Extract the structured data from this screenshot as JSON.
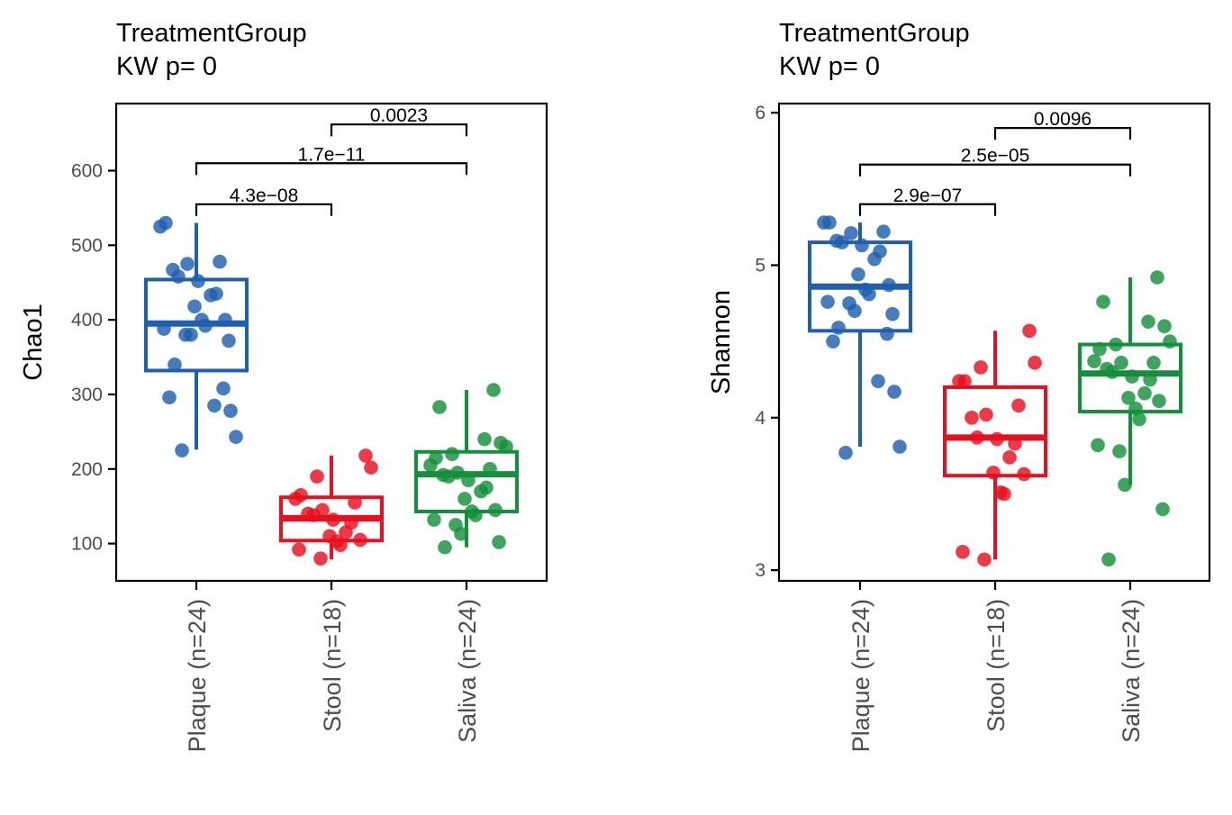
{
  "colors": {
    "Plaque": "#1F5FB0",
    "Stool": "#E8101E",
    "Saliva": "#13903A",
    "axis": "#000000",
    "tick_label": "#4D4D4D"
  },
  "chart_data": [
    {
      "type": "box",
      "title": "TreatmentGroup",
      "subtitle": "KW p= 0",
      "xlabel": "",
      "ylabel": "Chao1",
      "ylim": [
        50,
        690
      ],
      "yticks": [
        100,
        200,
        300,
        400,
        500,
        600
      ],
      "categories": [
        "Plaque (n=24)",
        "Stool (n=18)",
        "Saliva (n=24)"
      ],
      "boxes": [
        {
          "group": "Plaque",
          "q1": 332,
          "median": 395,
          "q3": 454,
          "whisker_low": 226,
          "whisker_high": 530
        },
        {
          "group": "Stool",
          "q1": 104,
          "median": 134,
          "q3": 162,
          "whisker_low": 79,
          "whisker_high": 218
        },
        {
          "group": "Saliva",
          "q1": 143,
          "median": 193,
          "q3": 223,
          "whisker_low": 95,
          "whisker_high": 306
        }
      ],
      "points": [
        {
          "group": "Plaque",
          "values": [
            530,
            525,
            478,
            475,
            467,
            458,
            452,
            435,
            433,
            418,
            400,
            400,
            392,
            388,
            380,
            380,
            372,
            340,
            308,
            296,
            285,
            278,
            243,
            225
          ]
        },
        {
          "group": "Stool",
          "values": [
            218,
            202,
            190,
            165,
            160,
            155,
            145,
            140,
            138,
            132,
            128,
            115,
            110,
            105,
            103,
            98,
            92,
            80
          ]
        },
        {
          "group": "Saliva",
          "values": [
            306,
            283,
            240,
            235,
            230,
            220,
            215,
            205,
            200,
            195,
            192,
            190,
            185,
            175,
            170,
            160,
            145,
            143,
            138,
            132,
            125,
            113,
            102,
            95
          ]
        }
      ],
      "comparisons": [
        {
          "from": "Plaque",
          "to": "Stool",
          "y": 555,
          "label": "4.3e−08"
        },
        {
          "from": "Plaque",
          "to": "Saliva",
          "y": 610,
          "label": "1.7e−11"
        },
        {
          "from": "Stool",
          "to": "Saliva",
          "y": 662,
          "label": "0.0023"
        }
      ]
    },
    {
      "type": "box",
      "title": "TreatmentGroup",
      "subtitle": "KW p= 0",
      "xlabel": "",
      "ylabel": "Shannon",
      "ylim": [
        2.93,
        6.06
      ],
      "yticks": [
        3,
        4,
        5,
        6
      ],
      "categories": [
        "Plaque (n=24)",
        "Stool (n=18)",
        "Saliva (n=24)"
      ],
      "boxes": [
        {
          "group": "Plaque",
          "q1": 4.57,
          "median": 4.86,
          "q3": 5.15,
          "whisker_low": 3.81,
          "whisker_high": 5.28
        },
        {
          "group": "Stool",
          "q1": 3.62,
          "median": 3.87,
          "q3": 4.2,
          "whisker_low": 3.07,
          "whisker_high": 4.57
        },
        {
          "group": "Saliva",
          "q1": 4.04,
          "median": 4.29,
          "q3": 4.48,
          "whisker_low": 3.56,
          "whisker_high": 4.92
        }
      ],
      "points": [
        {
          "group": "Plaque",
          "values": [
            5.28,
            5.28,
            5.22,
            5.21,
            5.16,
            5.15,
            5.13,
            5.09,
            5.04,
            4.94,
            4.87,
            4.84,
            4.81,
            4.76,
            4.75,
            4.7,
            4.68,
            4.59,
            4.55,
            4.5,
            4.24,
            4.17,
            3.81,
            3.77
          ]
        },
        {
          "group": "Stool",
          "values": [
            4.57,
            4.36,
            4.33,
            4.24,
            4.24,
            4.08,
            4.02,
            4.0,
            3.87,
            3.86,
            3.83,
            3.74,
            3.64,
            3.63,
            3.51,
            3.5,
            3.12,
            3.07
          ]
        },
        {
          "group": "Saliva",
          "values": [
            4.92,
            4.76,
            4.63,
            4.6,
            4.5,
            4.48,
            4.45,
            4.37,
            4.36,
            4.36,
            4.32,
            4.3,
            4.27,
            4.25,
            4.16,
            4.13,
            4.11,
            4.06,
            3.99,
            3.82,
            3.78,
            3.56,
            3.4,
            3.07
          ]
        }
      ],
      "comparisons": [
        {
          "from": "Plaque",
          "to": "Stool",
          "y": 5.4,
          "label": "2.9e−07"
        },
        {
          "from": "Plaque",
          "to": "Saliva",
          "y": 5.66,
          "label": "2.5e−05"
        },
        {
          "from": "Stool",
          "to": "Saliva",
          "y": 5.9,
          "label": "0.0096"
        }
      ]
    }
  ]
}
